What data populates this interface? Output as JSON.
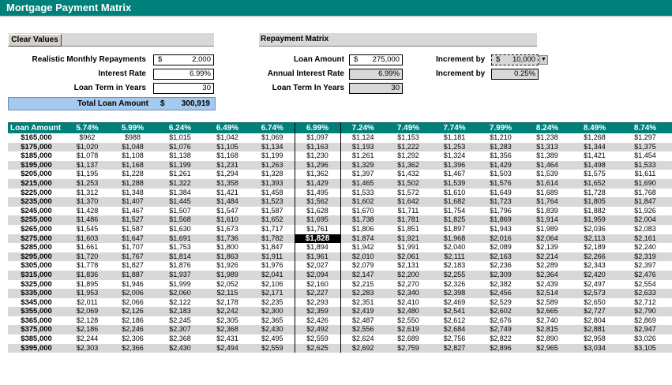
{
  "title": "Mortgage Payment Matrix",
  "controls": {
    "clear_label": "Clear Values",
    "repayments_label": "Realistic Monthly Repayments",
    "repayments_cur": "$",
    "repayments_value": "2,000",
    "interest_label": "Interest Rate",
    "interest_value": "6.99%",
    "term_label": "Loan Term in Years",
    "term_value": "30",
    "total_label": "Total Loan Amount",
    "total_cur": "$",
    "total_value": "300,919"
  },
  "repayment": {
    "header": "Repayment Matrix",
    "loan_label": "Loan Amount",
    "loan_cur": "$",
    "loan_value": "275,000",
    "annual_label": "Annual Interest Rate",
    "annual_value": "6.99%",
    "term_label": "Loan Term In Years",
    "term_value": "30",
    "inc1_label": "Increment by",
    "inc1_cur": "$",
    "inc1_value": "10,000",
    "inc2_label": "Increment by",
    "inc2_value": "0.25%"
  },
  "matrix": {
    "corner": "Loan Amount",
    "rates": [
      "5.74%",
      "5.99%",
      "6.24%",
      "6.49%",
      "6.74%",
      "6.99%",
      "7.24%",
      "7.49%",
      "7.74%",
      "7.99%",
      "8.24%",
      "8.49%",
      "8.74%"
    ],
    "rows": [
      {
        "amount": "$165,000",
        "values": [
          "$962",
          "$988",
          "$1,015",
          "$1,042",
          "$1,069",
          "$1,097",
          "$1,124",
          "$1,153",
          "$1,181",
          "$1,210",
          "$1,238",
          "$1,268",
          "$1,297"
        ]
      },
      {
        "amount": "$175,000",
        "values": [
          "$1,020",
          "$1,048",
          "$1,076",
          "$1,105",
          "$1,134",
          "$1,163",
          "$1,193",
          "$1,222",
          "$1,253",
          "$1,283",
          "$1,313",
          "$1,344",
          "$1,375"
        ]
      },
      {
        "amount": "$185,000",
        "values": [
          "$1,078",
          "$1,108",
          "$1,138",
          "$1,168",
          "$1,199",
          "$1,230",
          "$1,261",
          "$1,292",
          "$1,324",
          "$1,356",
          "$1,389",
          "$1,421",
          "$1,454"
        ]
      },
      {
        "amount": "$195,000",
        "values": [
          "$1,137",
          "$1,168",
          "$1,199",
          "$1,231",
          "$1,263",
          "$1,296",
          "$1,329",
          "$1,362",
          "$1,396",
          "$1,429",
          "$1,464",
          "$1,498",
          "$1,533"
        ]
      },
      {
        "amount": "$205,000",
        "values": [
          "$1,195",
          "$1,228",
          "$1,261",
          "$1,294",
          "$1,328",
          "$1,362",
          "$1,397",
          "$1,432",
          "$1,467",
          "$1,503",
          "$1,539",
          "$1,575",
          "$1,611"
        ]
      },
      {
        "amount": "$215,000",
        "values": [
          "$1,253",
          "$1,288",
          "$1,322",
          "$1,358",
          "$1,393",
          "$1,429",
          "$1,465",
          "$1,502",
          "$1,539",
          "$1,576",
          "$1,614",
          "$1,652",
          "$1,690"
        ]
      },
      {
        "amount": "$225,000",
        "values": [
          "$1,312",
          "$1,348",
          "$1,384",
          "$1,421",
          "$1,458",
          "$1,495",
          "$1,533",
          "$1,572",
          "$1,610",
          "$1,649",
          "$1,689",
          "$1,728",
          "$1,768"
        ]
      },
      {
        "amount": "$235,000",
        "values": [
          "$1,370",
          "$1,407",
          "$1,445",
          "$1,484",
          "$1,523",
          "$1,562",
          "$1,602",
          "$1,642",
          "$1,682",
          "$1,723",
          "$1,764",
          "$1,805",
          "$1,847"
        ]
      },
      {
        "amount": "$245,000",
        "values": [
          "$1,428",
          "$1,467",
          "$1,507",
          "$1,547",
          "$1,587",
          "$1,628",
          "$1,670",
          "$1,711",
          "$1,754",
          "$1,796",
          "$1,839",
          "$1,882",
          "$1,926"
        ]
      },
      {
        "amount": "$255,000",
        "values": [
          "$1,486",
          "$1,527",
          "$1,568",
          "$1,610",
          "$1,652",
          "$1,695",
          "$1,738",
          "$1,781",
          "$1,825",
          "$1,869",
          "$1,914",
          "$1,959",
          "$2,004"
        ]
      },
      {
        "amount": "$265,000",
        "values": [
          "$1,545",
          "$1,587",
          "$1,630",
          "$1,673",
          "$1,717",
          "$1,761",
          "$1,806",
          "$1,851",
          "$1,897",
          "$1,943",
          "$1,989",
          "$2,036",
          "$2,083"
        ]
      },
      {
        "amount": "$275,000",
        "values": [
          "$1,603",
          "$1,647",
          "$1,691",
          "$1,736",
          "$1,782",
          "$1,828",
          "$1,874",
          "$1,921",
          "$1,968",
          "$2,016",
          "$2,064",
          "$2,113",
          "$2,161"
        ]
      },
      {
        "amount": "$285,000",
        "values": [
          "$1,661",
          "$1,707",
          "$1,753",
          "$1,800",
          "$1,847",
          "$1,894",
          "$1,942",
          "$1,991",
          "$2,040",
          "$2,089",
          "$2,139",
          "$2,189",
          "$2,240"
        ]
      },
      {
        "amount": "$295,000",
        "values": [
          "$1,720",
          "$1,767",
          "$1,814",
          "$1,863",
          "$1,911",
          "$1,961",
          "$2,010",
          "$2,061",
          "$2,111",
          "$2,163",
          "$2,214",
          "$2,266",
          "$2,319"
        ]
      },
      {
        "amount": "$305,000",
        "values": [
          "$1,778",
          "$1,827",
          "$1,876",
          "$1,926",
          "$1,976",
          "$2,027",
          "$2,079",
          "$2,131",
          "$2,183",
          "$2,236",
          "$2,289",
          "$2,343",
          "$2,397"
        ]
      },
      {
        "amount": "$315,000",
        "values": [
          "$1,836",
          "$1,887",
          "$1,937",
          "$1,989",
          "$2,041",
          "$2,094",
          "$2,147",
          "$2,200",
          "$2,255",
          "$2,309",
          "$2,364",
          "$2,420",
          "$2,476"
        ]
      },
      {
        "amount": "$325,000",
        "values": [
          "$1,895",
          "$1,946",
          "$1,999",
          "$2,052",
          "$2,106",
          "$2,160",
          "$2,215",
          "$2,270",
          "$2,326",
          "$2,382",
          "$2,439",
          "$2,497",
          "$2,554"
        ]
      },
      {
        "amount": "$335,000",
        "values": [
          "$1,953",
          "$2,006",
          "$2,060",
          "$2,115",
          "$2,171",
          "$2,227",
          "$2,283",
          "$2,340",
          "$2,398",
          "$2,456",
          "$2,514",
          "$2,573",
          "$2,633"
        ]
      },
      {
        "amount": "$345,000",
        "values": [
          "$2,011",
          "$2,066",
          "$2,122",
          "$2,178",
          "$2,235",
          "$2,293",
          "$2,351",
          "$2,410",
          "$2,469",
          "$2,529",
          "$2,589",
          "$2,650",
          "$2,712"
        ]
      },
      {
        "amount": "$355,000",
        "values": [
          "$2,069",
          "$2,126",
          "$2,183",
          "$2,242",
          "$2,300",
          "$2,359",
          "$2,419",
          "$2,480",
          "$2,541",
          "$2,602",
          "$2,665",
          "$2,727",
          "$2,790"
        ]
      },
      {
        "amount": "$365,000",
        "values": [
          "$2,128",
          "$2,186",
          "$2,245",
          "$2,305",
          "$2,365",
          "$2,426",
          "$2,487",
          "$2,550",
          "$2,612",
          "$2,676",
          "$2,740",
          "$2,804",
          "$2,869"
        ]
      },
      {
        "amount": "$375,000",
        "values": [
          "$2,186",
          "$2,246",
          "$2,307",
          "$2,368",
          "$2,430",
          "$2,492",
          "$2,556",
          "$2,619",
          "$2,684",
          "$2,749",
          "$2,815",
          "$2,881",
          "$2,947"
        ]
      },
      {
        "amount": "$385,000",
        "values": [
          "$2,244",
          "$2,306",
          "$2,368",
          "$2,431",
          "$2,495",
          "$2,559",
          "$2,624",
          "$2,689",
          "$2,756",
          "$2,822",
          "$2,890",
          "$2,958",
          "$3,026"
        ]
      },
      {
        "amount": "$395,000",
        "values": [
          "$2,303",
          "$2,366",
          "$2,430",
          "$2,494",
          "$2,559",
          "$2,625",
          "$2,692",
          "$2,759",
          "$2,827",
          "$2,896",
          "$2,965",
          "$3,034",
          "$3,105"
        ]
      }
    ]
  }
}
